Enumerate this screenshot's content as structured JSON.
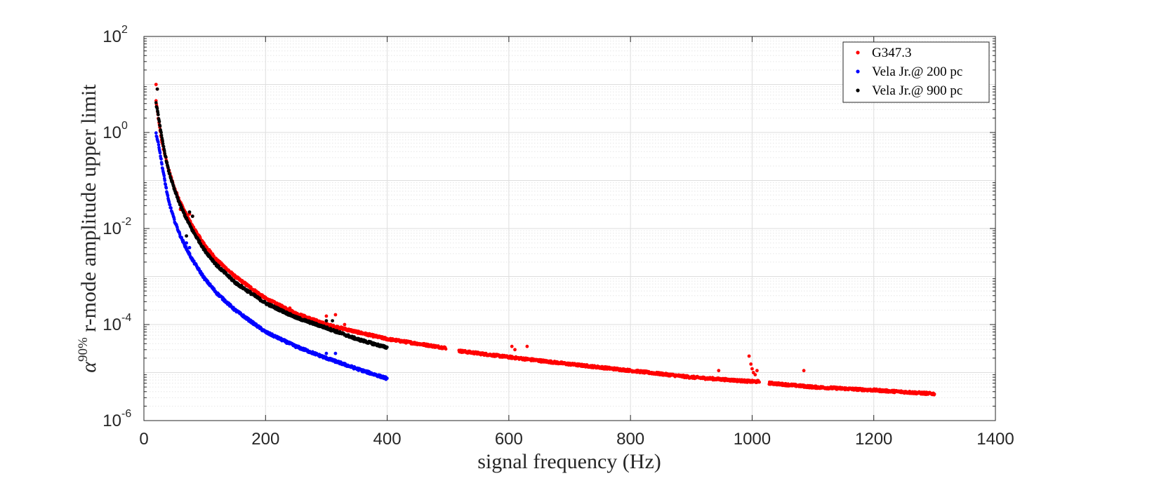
{
  "chart_data": {
    "type": "scatter",
    "title": "",
    "xlabel": "signal frequency (Hz)",
    "ylabel": {
      "symbol": "α",
      "superscript": "90%",
      "text": " r-mode amplitude upper limit"
    },
    "xlim": [
      0,
      1400
    ],
    "ylim": [
      1e-06,
      100
    ],
    "yscale": "log",
    "grid": true,
    "minor_grid": true,
    "legend_position": "top-right",
    "x_ticks": [
      0,
      200,
      400,
      600,
      800,
      1000,
      1200,
      1400
    ],
    "x_tick_labels": [
      "0",
      "200",
      "400",
      "600",
      "800",
      "1000",
      "1200",
      "1400"
    ],
    "y_ticks": [
      {
        "value": 1e-06,
        "base": "10",
        "exp": "-6"
      },
      {
        "value": 0.0001,
        "base": "10",
        "exp": "-4"
      },
      {
        "value": 0.01,
        "base": "10",
        "exp": "-2"
      },
      {
        "value": 1,
        "base": "10",
        "exp": "0"
      },
      {
        "value": 100,
        "base": "10",
        "exp": "2"
      }
    ],
    "series": [
      {
        "name": "G347.3",
        "color": "#ff0000",
        "curve": [
          [
            20,
            4.5
          ],
          [
            25,
            1.5
          ],
          [
            30,
            0.6
          ],
          [
            40,
            0.18
          ],
          [
            50,
            0.07
          ],
          [
            60,
            0.035
          ],
          [
            70,
            0.019
          ],
          [
            80,
            0.011
          ],
          [
            100,
            0.0045
          ],
          [
            120,
            0.0022
          ],
          [
            150,
            0.001
          ],
          [
            200,
            0.00035
          ],
          [
            250,
            0.00017
          ],
          [
            300,
            0.0001
          ],
          [
            350,
            7e-05
          ],
          [
            400,
            5e-05
          ],
          [
            450,
            4e-05
          ],
          [
            500,
            3.2e-05
          ],
          [
            520,
            2.8e-05
          ],
          [
            600,
            2.1e-05
          ],
          [
            700,
            1.5e-05
          ],
          [
            800,
            1.1e-05
          ],
          [
            900,
            8e-06
          ],
          [
            1000,
            6.5e-06
          ],
          [
            1010,
            6.5e-06
          ],
          [
            1030,
            6e-06
          ],
          [
            1100,
            5e-06
          ],
          [
            1200,
            4.3e-06
          ],
          [
            1300,
            3.6e-06
          ]
        ],
        "gaps": [
          [
            497,
            518
          ],
          [
            1012,
            1028
          ]
        ],
        "outliers": [
          [
            20,
            10
          ],
          [
            22,
            8
          ],
          [
            60,
            0.025
          ],
          [
            70,
            0.02
          ],
          [
            75,
            0.02
          ],
          [
            80,
            0.018
          ],
          [
            240,
            0.00022
          ],
          [
            300,
            0.00015
          ],
          [
            315,
            0.00016
          ],
          [
            330,
            0.0001
          ],
          [
            605,
            3.5e-05
          ],
          [
            610,
            3e-05
          ],
          [
            630,
            3.5e-05
          ],
          [
            945,
            1.1e-05
          ],
          [
            995,
            2.2e-05
          ],
          [
            998,
            1.5e-05
          ],
          [
            1000,
            1.2e-05
          ],
          [
            1002,
            1e-05
          ],
          [
            1005,
            9e-06
          ],
          [
            1008,
            1.1e-05
          ],
          [
            1085,
            1.1e-05
          ]
        ]
      },
      {
        "name": "Vela Jr.@ 200 pc",
        "color": "#0000ff",
        "curve": [
          [
            20,
            0.95
          ],
          [
            25,
            0.5
          ],
          [
            30,
            0.2
          ],
          [
            40,
            0.04
          ],
          [
            50,
            0.015
          ],
          [
            60,
            0.007
          ],
          [
            70,
            0.0038
          ],
          [
            80,
            0.0022
          ],
          [
            100,
            0.0009
          ],
          [
            120,
            0.00045
          ],
          [
            150,
            0.0002
          ],
          [
            200,
            7e-05
          ],
          [
            250,
            3.5e-05
          ],
          [
            300,
            2e-05
          ],
          [
            350,
            1.2e-05
          ],
          [
            400,
            7.5e-06
          ]
        ],
        "gaps": [],
        "outliers": [
          [
            70,
            0.005
          ],
          [
            75,
            0.004
          ],
          [
            300,
            2.5e-05
          ],
          [
            315,
            2.5e-05
          ]
        ]
      },
      {
        "name": "Vela Jr.@ 900 pc",
        "color": "#000000",
        "curve": [
          [
            20,
            4
          ],
          [
            25,
            1.8
          ],
          [
            30,
            0.7
          ],
          [
            40,
            0.17
          ],
          [
            50,
            0.065
          ],
          [
            60,
            0.03
          ],
          [
            70,
            0.016
          ],
          [
            80,
            0.009
          ],
          [
            100,
            0.0035
          ],
          [
            120,
            0.0017
          ],
          [
            150,
            0.00075
          ],
          [
            200,
            0.00028
          ],
          [
            250,
            0.00014
          ],
          [
            300,
            8.5e-05
          ],
          [
            350,
            5e-05
          ],
          [
            400,
            3.3e-05
          ]
        ],
        "gaps": [],
        "outliers": [
          [
            22,
            8
          ],
          [
            65,
            0.022
          ],
          [
            75,
            0.022
          ],
          [
            80,
            0.018
          ],
          [
            70,
            0.007
          ],
          [
            300,
            0.00012
          ],
          [
            310,
            0.00012
          ]
        ]
      }
    ]
  }
}
